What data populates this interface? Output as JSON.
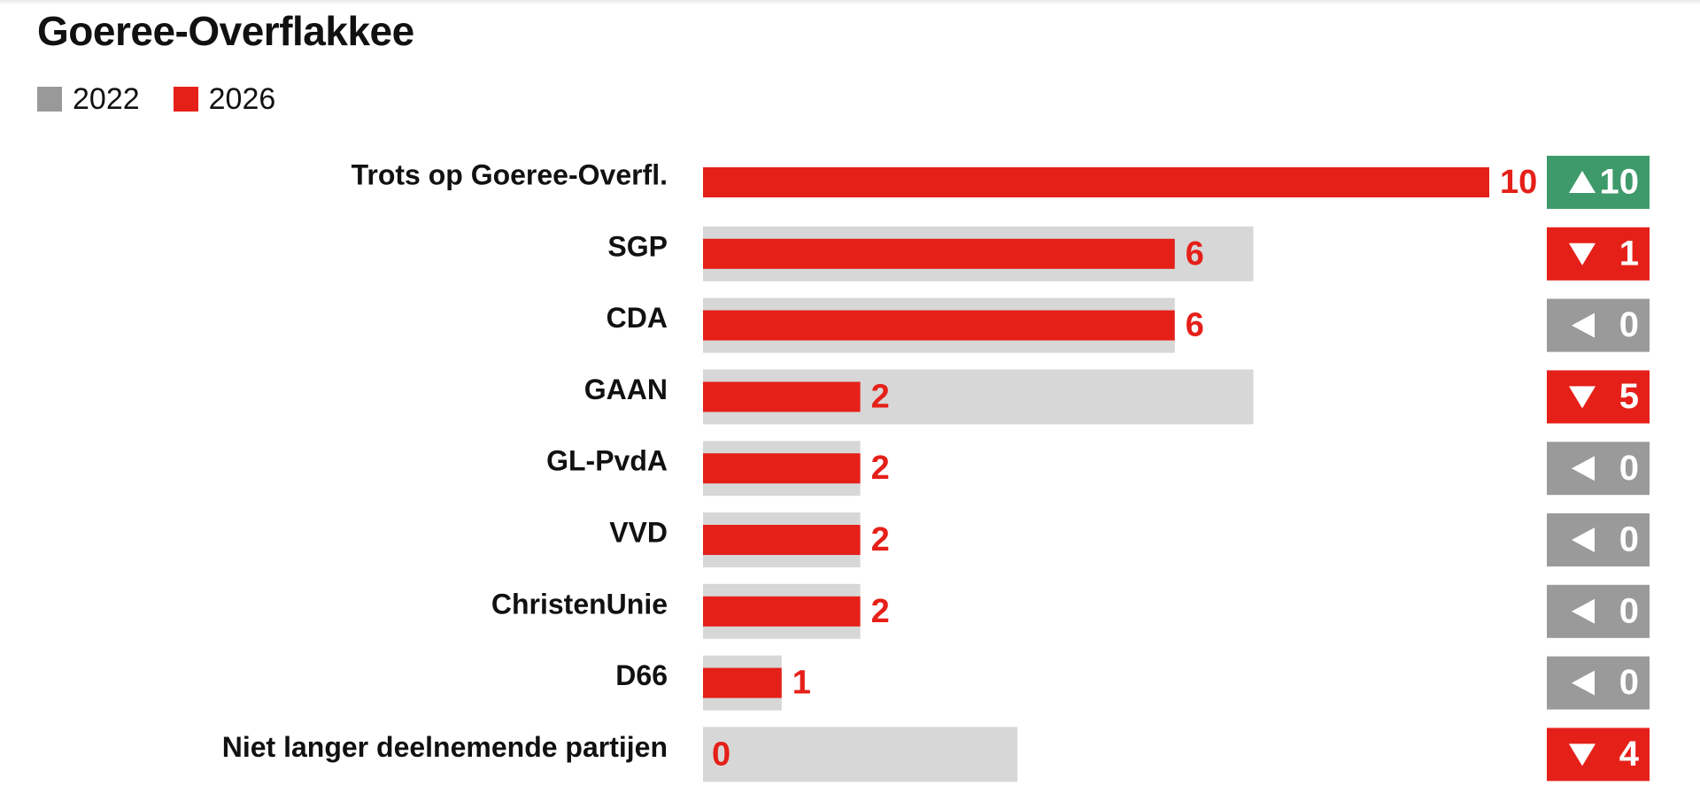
{
  "chart_data": {
    "type": "bar",
    "title": "Goeree-Overflakkee",
    "categories": [
      "Trots op Goeree-Overfl.",
      "SGP",
      "CDA",
      "GAAN",
      "GL-PvdA",
      "VVD",
      "ChristenUnie",
      "D66",
      "Niet langer deelnemende partijen"
    ],
    "series": [
      {
        "name": "2022",
        "color": "#d7d7d7",
        "legend_color": "#999999",
        "values": [
          0,
          7,
          6,
          7,
          2,
          2,
          2,
          1,
          4
        ]
      },
      {
        "name": "2026",
        "color": "#e52019",
        "legend_color": "#e52019",
        "values": [
          10,
          6,
          6,
          2,
          2,
          2,
          2,
          1,
          0
        ]
      }
    ],
    "changes": [
      {
        "direction": "up",
        "value": "10"
      },
      {
        "direction": "down",
        "value": "1"
      },
      {
        "direction": "same",
        "value": "0"
      },
      {
        "direction": "down",
        "value": "5"
      },
      {
        "direction": "same",
        "value": "0"
      },
      {
        "direction": "same",
        "value": "0"
      },
      {
        "direction": "same",
        "value": "0"
      },
      {
        "direction": "same",
        "value": "0"
      },
      {
        "direction": "down",
        "value": "4"
      }
    ],
    "change_colors": {
      "up": "#3f9a6b",
      "down": "#e52019",
      "same": "#9a9a9a"
    },
    "value_label_color": "#e52019",
    "xlim": [
      0,
      10
    ],
    "grid": false,
    "legend_position": "top-left"
  }
}
